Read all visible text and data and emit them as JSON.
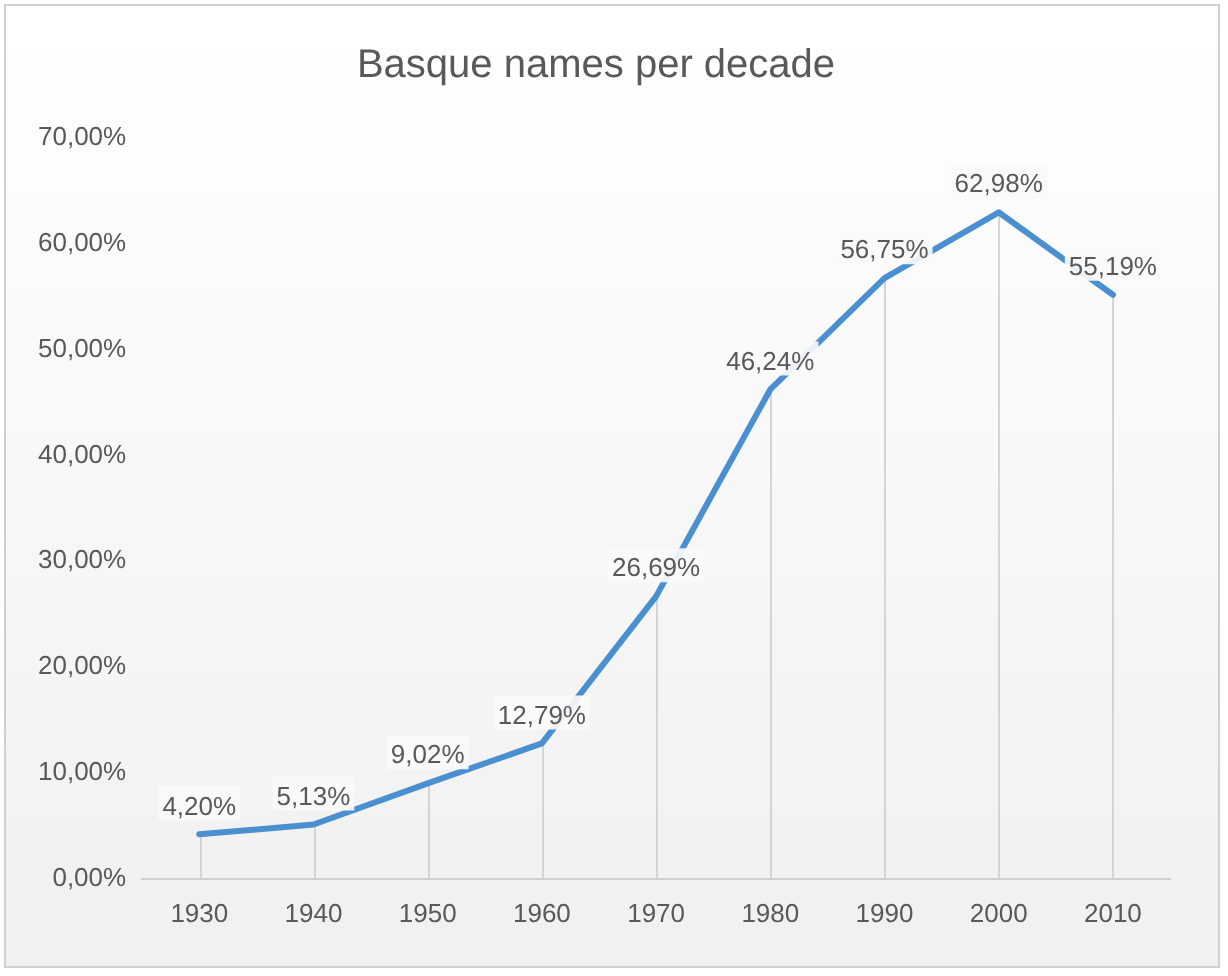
{
  "chart_data": {
    "type": "line",
    "title": "Basque names per decade",
    "categories": [
      "1930",
      "1940",
      "1950",
      "1960",
      "1970",
      "1980",
      "1990",
      "2000",
      "2010"
    ],
    "series": [
      {
        "color": "#4a90d0",
        "values": [
          4.2,
          5.13,
          9.02,
          12.79,
          26.69,
          46.24,
          56.75,
          62.98,
          55.19
        ],
        "value_labels": [
          "4,20%",
          "5,13%",
          "9,02%",
          "12,79%",
          "26,69%",
          "46,24%",
          "56,75%",
          "62,98%",
          "55,19%"
        ]
      }
    ],
    "ylim": [
      0,
      70
    ],
    "yticks": [
      {
        "value": 0,
        "label": "0,00%"
      },
      {
        "value": 10,
        "label": "10,00%"
      },
      {
        "value": 20,
        "label": "20,00%"
      },
      {
        "value": 30,
        "label": "30,00%"
      },
      {
        "value": 40,
        "label": "40,00%"
      },
      {
        "value": 50,
        "label": "50,00%"
      },
      {
        "value": 60,
        "label": "60,00%"
      },
      {
        "value": 70,
        "label": "70,00%"
      }
    ],
    "grid": "x",
    "legend": false,
    "marker": "none",
    "line_style": "solid"
  }
}
